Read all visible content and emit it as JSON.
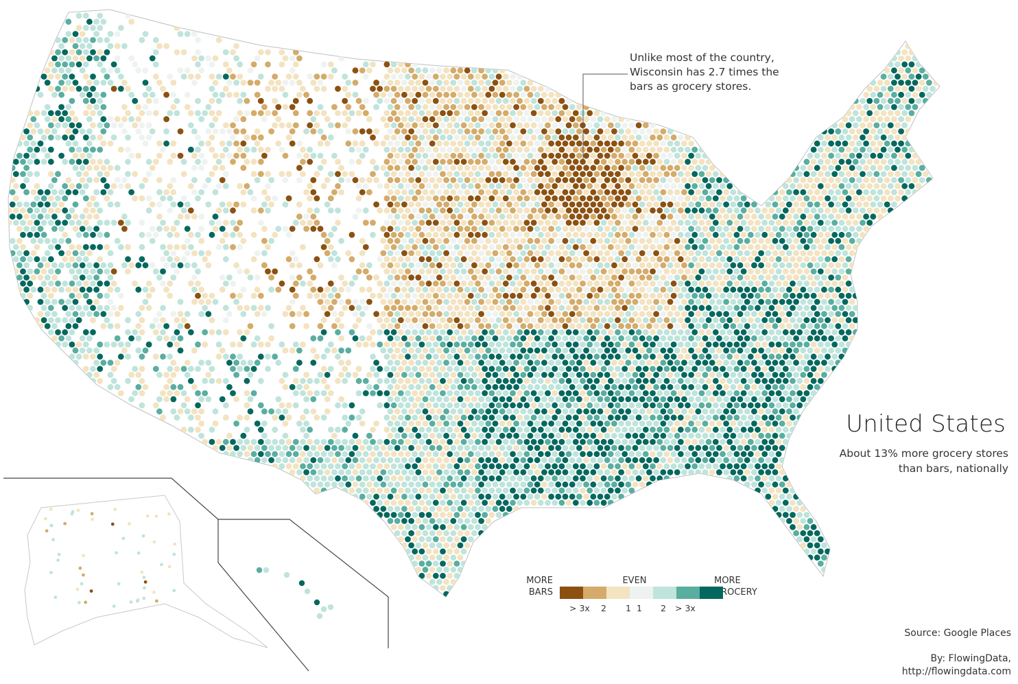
{
  "annotation": {
    "lines": [
      "Unlike most of the country,",
      "Wisconsin has 2.7 times the",
      "bars as grocery stores."
    ]
  },
  "title": "United States",
  "subtitle": "About 13% more grocery stores than bars, nationally",
  "legend": {
    "left_label": [
      "MORE",
      "BARS"
    ],
    "center_label": "EVEN",
    "right_label": [
      "MORE",
      "GROCERY"
    ],
    "ticks": [
      "> 3x",
      "2",
      "1",
      "1",
      "2",
      "> 3x"
    ],
    "colors": [
      "#8c5111",
      "#d4ab6a",
      "#f3e3c1",
      "#eef3f1",
      "#bfe4dc",
      "#5aaea0",
      "#05685e"
    ]
  },
  "source": "Source: Google Places",
  "byline": [
    "By: FlowingData,",
    "http://flowingdata.com"
  ],
  "colors": {
    "more_bars_strong": "#8c5111",
    "more_bars": "#d4ab6a",
    "slightly_bars": "#f3e3c1",
    "even": "#eef3f1",
    "slightly_grocery": "#bfe4dc",
    "more_grocery": "#5aaea0",
    "more_grocery_strong": "#05685e",
    "outline": "#999999"
  }
}
